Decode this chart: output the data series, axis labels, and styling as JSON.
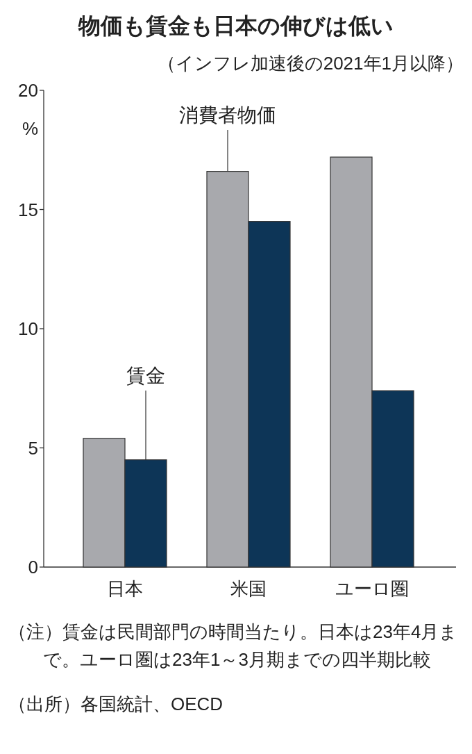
{
  "chart_data": {
    "type": "bar",
    "title": "物価も賃金も日本の伸びは低い",
    "subtitle": "（インフレ加速後の2021年1月以降）",
    "ylabel": "%",
    "categories": [
      "日本",
      "米国",
      "ユーロ圏"
    ],
    "series": [
      {
        "name": "消費者物価",
        "color": "#a8a9ad",
        "values": [
          5.4,
          16.6,
          17.2
        ]
      },
      {
        "name": "賃金",
        "color": "#0d3557",
        "values": [
          4.5,
          14.5,
          7.4
        ]
      }
    ],
    "ylim": [
      0,
      20
    ],
    "yticks": [
      0,
      5,
      10,
      15,
      20
    ],
    "annotations": [
      "（注）賃金は民間部門の時間当たり。日本は23年4月まで。ユーロ圏は23年1～3月期までの四半期比較",
      "（出所）各国統計、OECD"
    ]
  }
}
